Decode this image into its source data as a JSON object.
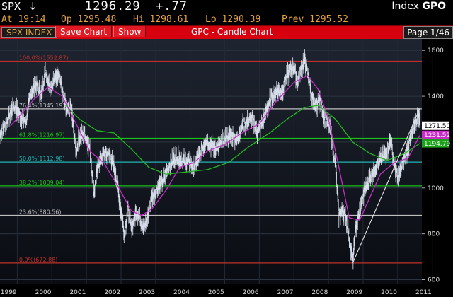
{
  "header": {
    "ticker": "SPX",
    "arrow": "↓",
    "last": "1296.29",
    "change": "+.77",
    "security_type": "Index",
    "function": "GPO",
    "time": "At 19:14",
    "open": "Op 1295.48",
    "high": "Hi 1298.61",
    "low": "Lo 1290.39",
    "prev": "Prev 1295.52"
  },
  "menu": {
    "index_label": "SPX INDEX",
    "save_chart": "Save Chart",
    "show": "Show",
    "title": "GPC - Candle Chart",
    "page": "Page 1/46"
  },
  "chart_data": {
    "type": "candlestick",
    "x_ticks": [
      "1999",
      "2000",
      "2001",
      "2002",
      "2003",
      "2004",
      "2005",
      "2006",
      "2007",
      "2008",
      "2009",
      "2010",
      "2011"
    ],
    "y_ticks": [
      600,
      800,
      1000,
      1200,
      1400,
      1600
    ],
    "ylim": [
      580,
      1650
    ],
    "xlim": [
      1999.0,
      2011.2
    ],
    "fib_levels": [
      {
        "label": "100.0%(1552.87)",
        "value": 1552.87,
        "color": "#c0302a"
      },
      {
        "label": "76.4%(1345.19)",
        "value": 1345.19,
        "color": "#bfbfbf"
      },
      {
        "label": "61.8%(1216.97)",
        "value": 1216.97,
        "color": "#19c219"
      },
      {
        "label": "50.0%(1112.98)",
        "value": 1112.98,
        "color": "#1fb5b5"
      },
      {
        "label": "38.2%(1009.04)",
        "value": 1009.04,
        "color": "#19c219"
      },
      {
        "label": "23.6%(880.56)",
        "value": 880.56,
        "color": "#bfbfbf"
      },
      {
        "label": "0.0%(672.88)",
        "value": 672.88,
        "color": "#c0302a"
      }
    ],
    "price_tags": [
      {
        "label": "1271.50",
        "value": 1271.5,
        "bg": "#ffffff",
        "fg": "#000000"
      },
      {
        "label": "1231.52",
        "value": 1231.52,
        "bg": "#cc2bcc",
        "fg": "#ffffff"
      },
      {
        "label": "1194.79",
        "value": 1194.79,
        "bg": "#1aa31a",
        "fg": "#ffffff"
      }
    ],
    "price_path": [
      [
        1999.0,
        1230
      ],
      [
        1999.2,
        1290
      ],
      [
        1999.4,
        1360
      ],
      [
        1999.55,
        1320
      ],
      [
        1999.75,
        1290
      ],
      [
        1999.9,
        1420
      ],
      [
        2000.05,
        1450
      ],
      [
        2000.2,
        1400
      ],
      [
        2000.3,
        1520
      ],
      [
        2000.45,
        1440
      ],
      [
        2000.6,
        1480
      ],
      [
        2000.7,
        1510
      ],
      [
        2000.85,
        1380
      ],
      [
        2000.95,
        1330
      ],
      [
        2001.05,
        1360
      ],
      [
        2001.2,
        1160
      ],
      [
        2001.3,
        1220
      ],
      [
        2001.45,
        1240
      ],
      [
        2001.6,
        1170
      ],
      [
        2001.72,
        980
      ],
      [
        2001.85,
        1110
      ],
      [
        2002.0,
        1150
      ],
      [
        2002.2,
        1140
      ],
      [
        2002.35,
        1060
      ],
      [
        2002.5,
        900
      ],
      [
        2002.6,
        800
      ],
      [
        2002.7,
        910
      ],
      [
        2002.8,
        820
      ],
      [
        2002.95,
        900
      ],
      [
        2003.1,
        850
      ],
      [
        2003.2,
        830
      ],
      [
        2003.4,
        960
      ],
      [
        2003.55,
        1000
      ],
      [
        2003.7,
        1030
      ],
      [
        2003.9,
        1100
      ],
      [
        2004.1,
        1140
      ],
      [
        2004.3,
        1120
      ],
      [
        2004.5,
        1110
      ],
      [
        2004.6,
        1090
      ],
      [
        2004.8,
        1150
      ],
      [
        2004.95,
        1210
      ],
      [
        2005.1,
        1190
      ],
      [
        2005.3,
        1170
      ],
      [
        2005.5,
        1220
      ],
      [
        2005.7,
        1230
      ],
      [
        2005.85,
        1210
      ],
      [
        2006.0,
        1270
      ],
      [
        2006.3,
        1300
      ],
      [
        2006.45,
        1240
      ],
      [
        2006.6,
        1290
      ],
      [
        2006.8,
        1380
      ],
      [
        2007.0,
        1430
      ],
      [
        2007.15,
        1420
      ],
      [
        2007.3,
        1490
      ],
      [
        2007.5,
        1530
      ],
      [
        2007.6,
        1460
      ],
      [
        2007.8,
        1560
      ],
      [
        2007.95,
        1460
      ],
      [
        2008.1,
        1340
      ],
      [
        2008.25,
        1390
      ],
      [
        2008.4,
        1300
      ],
      [
        2008.55,
        1260
      ],
      [
        2008.7,
        1100
      ],
      [
        2008.8,
        880
      ],
      [
        2008.9,
        900
      ],
      [
        2009.0,
        880
      ],
      [
        2009.1,
        780
      ],
      [
        2009.2,
        680
      ],
      [
        2009.3,
        830
      ],
      [
        2009.45,
        930
      ],
      [
        2009.55,
        990
      ],
      [
        2009.7,
        1050
      ],
      [
        2009.85,
        1090
      ],
      [
        2010.0,
        1120
      ],
      [
        2010.15,
        1150
      ],
      [
        2010.3,
        1210
      ],
      [
        2010.4,
        1100
      ],
      [
        2010.5,
        1040
      ],
      [
        2010.6,
        1080
      ],
      [
        2010.7,
        1130
      ],
      [
        2010.85,
        1200
      ],
      [
        2011.0,
        1280
      ],
      [
        2011.1,
        1320
      ],
      [
        2011.15,
        1275
      ]
    ],
    "ma_short": [
      [
        1999.3,
        1270
      ],
      [
        1999.6,
        1320
      ],
      [
        2000.0,
        1390
      ],
      [
        2000.4,
        1440
      ],
      [
        2000.8,
        1400
      ],
      [
        2001.2,
        1280
      ],
      [
        2001.6,
        1160
      ],
      [
        2002.0,
        1110
      ],
      [
        2002.4,
        1010
      ],
      [
        2002.8,
        900
      ],
      [
        2003.1,
        880
      ],
      [
        2003.4,
        910
      ],
      [
        2003.8,
        990
      ],
      [
        2004.2,
        1090
      ],
      [
        2004.6,
        1110
      ],
      [
        2005.0,
        1160
      ],
      [
        2005.5,
        1190
      ],
      [
        2006.0,
        1240
      ],
      [
        2006.5,
        1280
      ],
      [
        2007.0,
        1380
      ],
      [
        2007.5,
        1460
      ],
      [
        2007.9,
        1490
      ],
      [
        2008.2,
        1430
      ],
      [
        2008.5,
        1300
      ],
      [
        2008.8,
        1090
      ],
      [
        2009.1,
        870
      ],
      [
        2009.4,
        860
      ],
      [
        2009.7,
        960
      ],
      [
        2010.0,
        1060
      ],
      [
        2010.4,
        1110
      ],
      [
        2010.8,
        1130
      ],
      [
        2011.15,
        1231.52
      ]
    ],
    "ma_long": [
      [
        2000.9,
        1360
      ],
      [
        2001.3,
        1300
      ],
      [
        2001.8,
        1250
      ],
      [
        2002.3,
        1240
      ],
      [
        2002.8,
        1170
      ],
      [
        2003.3,
        1090
      ],
      [
        2003.8,
        1060
      ],
      [
        2004.4,
        1070
      ],
      [
        2005.0,
        1080
      ],
      [
        2005.6,
        1110
      ],
      [
        2006.2,
        1180
      ],
      [
        2006.8,
        1240
      ],
      [
        2007.3,
        1300
      ],
      [
        2007.8,
        1350
      ],
      [
        2008.2,
        1360
      ],
      [
        2008.7,
        1300
      ],
      [
        2009.2,
        1200
      ],
      [
        2009.7,
        1150
      ],
      [
        2010.2,
        1120
      ],
      [
        2010.7,
        1150
      ],
      [
        2011.15,
        1194.79
      ]
    ],
    "trendline": [
      [
        2009.2,
        672.88
      ],
      [
        2011.15,
        1350
      ]
    ]
  }
}
